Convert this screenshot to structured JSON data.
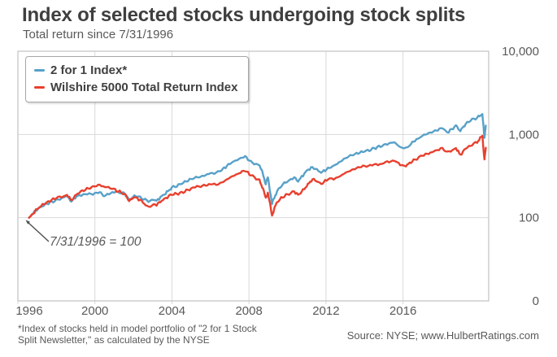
{
  "header": {
    "title": "Index of selected stocks undergoing stock splits",
    "subtitle": "Total return since 7/31/1996"
  },
  "annotation": {
    "label": "7/31/1996 = 100"
  },
  "footer": {
    "footnote": "*Index of stocks held in model portfolio of \"2 for 1 Stock\nSplit Newsletter,\" as calculated by the NYSE",
    "source": "Source: NYSE; www.HulbertRatings.com"
  },
  "colors": {
    "title_text": "#3f3f3f",
    "axis_text": "#595959",
    "grid": "#d9d9d9",
    "border": "#c2c2c2",
    "arrow": "#4d4d4d",
    "series_2for1": "#58a1c8",
    "series_wilshire": "#e8402e"
  },
  "chart_data": {
    "type": "line",
    "title": "Index of selected stocks undergoing stock splits",
    "subtitle": "Total return since 7/31/1996",
    "xlabel": "",
    "ylabel": "",
    "grid": true,
    "legend_position": "top-left",
    "x_axis": {
      "range": [
        1996.0,
        2020.45
      ],
      "ticks": [
        1996,
        2000,
        2004,
        2008,
        2012,
        2016
      ]
    },
    "y_axis": {
      "scale": "log",
      "tick_labels": [
        "10,000",
        "1,000",
        "100",
        "0"
      ],
      "tick_values": [
        10000,
        1000,
        100,
        10
      ],
      "displayed_range": [
        0,
        10000
      ]
    },
    "base_value_note": "7/31/1996 = 100",
    "series": [
      {
        "name": "2 for 1 Index*",
        "color": "#58a1c8",
        "points": [
          [
            1996.58,
            100
          ],
          [
            1997,
            123
          ],
          [
            1997.5,
            148
          ],
          [
            1998,
            166
          ],
          [
            1998.55,
            182
          ],
          [
            1998.78,
            155
          ],
          [
            1999.1,
            182
          ],
          [
            1999.5,
            190
          ],
          [
            2000,
            200
          ],
          [
            2000.25,
            204
          ],
          [
            2000.5,
            182
          ],
          [
            2000.8,
            195
          ],
          [
            2001.2,
            200
          ],
          [
            2001.55,
            195
          ],
          [
            2001.78,
            166
          ],
          [
            2002.05,
            186
          ],
          [
            2002.35,
            178
          ],
          [
            2002.78,
            155
          ],
          [
            2003.05,
            162
          ],
          [
            2003.2,
            158
          ],
          [
            2003.6,
            190
          ],
          [
            2004,
            234
          ],
          [
            2004.5,
            257
          ],
          [
            2005,
            288
          ],
          [
            2005.5,
            309
          ],
          [
            2006,
            347
          ],
          [
            2006.5,
            363
          ],
          [
            2007,
            437
          ],
          [
            2007.4,
            490
          ],
          [
            2007.8,
            550
          ],
          [
            2008.1,
            479
          ],
          [
            2008.55,
            427
          ],
          [
            2008.72,
            339
          ],
          [
            2008.87,
            251
          ],
          [
            2008.98,
            302
          ],
          [
            2009.2,
            145
          ],
          [
            2009.45,
            204
          ],
          [
            2009.75,
            251
          ],
          [
            2010,
            275
          ],
          [
            2010.35,
            309
          ],
          [
            2010.55,
            275
          ],
          [
            2011,
            363
          ],
          [
            2011.3,
            398
          ],
          [
            2011.75,
            347
          ],
          [
            2012.1,
            398
          ],
          [
            2012.5,
            437
          ],
          [
            2013,
            513
          ],
          [
            2013.5,
            575
          ],
          [
            2014,
            631
          ],
          [
            2014.5,
            692
          ],
          [
            2015,
            741
          ],
          [
            2015.55,
            794
          ],
          [
            2015.85,
            708
          ],
          [
            2016.15,
            692
          ],
          [
            2016.55,
            832
          ],
          [
            2017,
            955
          ],
          [
            2017.5,
            1047
          ],
          [
            2018.05,
            1202
          ],
          [
            2018.3,
            1072
          ],
          [
            2018.75,
            1288
          ],
          [
            2018.98,
            1096
          ],
          [
            2019.25,
            1318
          ],
          [
            2019.5,
            1445
          ],
          [
            2019.85,
            1585
          ],
          [
            2020.12,
            1778
          ],
          [
            2020.23,
            912
          ],
          [
            2020.3,
            1288
          ]
        ]
      },
      {
        "name": "Wilshire 5000 Total Return Index",
        "color": "#e8402e",
        "points": [
          [
            1996.58,
            100
          ],
          [
            1997,
            126
          ],
          [
            1997.5,
            151
          ],
          [
            1998,
            174
          ],
          [
            1998.55,
            190
          ],
          [
            1998.78,
            162
          ],
          [
            1999.1,
            193
          ],
          [
            1999.5,
            214
          ],
          [
            2000,
            240
          ],
          [
            2000.25,
            251
          ],
          [
            2000.6,
            234
          ],
          [
            2000.9,
            224
          ],
          [
            2001.2,
            204
          ],
          [
            2001.55,
            190
          ],
          [
            2001.78,
            158
          ],
          [
            2002.05,
            178
          ],
          [
            2002.35,
            166
          ],
          [
            2002.78,
            135
          ],
          [
            2003.05,
            144
          ],
          [
            2003.2,
            140
          ],
          [
            2003.6,
            166
          ],
          [
            2004,
            190
          ],
          [
            2004.5,
            204
          ],
          [
            2005,
            224
          ],
          [
            2005.5,
            234
          ],
          [
            2006,
            251
          ],
          [
            2006.5,
            263
          ],
          [
            2007,
            302
          ],
          [
            2007.4,
            330
          ],
          [
            2007.8,
            363
          ],
          [
            2008.1,
            324
          ],
          [
            2008.55,
            288
          ],
          [
            2008.72,
            229
          ],
          [
            2008.87,
            174
          ],
          [
            2008.98,
            200
          ],
          [
            2009.2,
            106
          ],
          [
            2009.45,
            151
          ],
          [
            2009.75,
            174
          ],
          [
            2010,
            190
          ],
          [
            2010.35,
            209
          ],
          [
            2010.55,
            190
          ],
          [
            2011,
            240
          ],
          [
            2011.3,
            288
          ],
          [
            2011.75,
            251
          ],
          [
            2012.1,
            288
          ],
          [
            2012.5,
            302
          ],
          [
            2013,
            347
          ],
          [
            2013.5,
            380
          ],
          [
            2014,
            417
          ],
          [
            2014.5,
            437
          ],
          [
            2015,
            457
          ],
          [
            2015.55,
            479
          ],
          [
            2015.85,
            427
          ],
          [
            2016.15,
            417
          ],
          [
            2016.55,
            501
          ],
          [
            2017,
            562
          ],
          [
            2017.5,
            603
          ],
          [
            2018.05,
            676
          ],
          [
            2018.3,
            617
          ],
          [
            2018.75,
            692
          ],
          [
            2018.98,
            575
          ],
          [
            2019.25,
            676
          ],
          [
            2019.5,
            724
          ],
          [
            2019.85,
            794
          ],
          [
            2020.12,
            955
          ],
          [
            2020.23,
            501
          ],
          [
            2020.3,
            692
          ]
        ]
      }
    ]
  }
}
